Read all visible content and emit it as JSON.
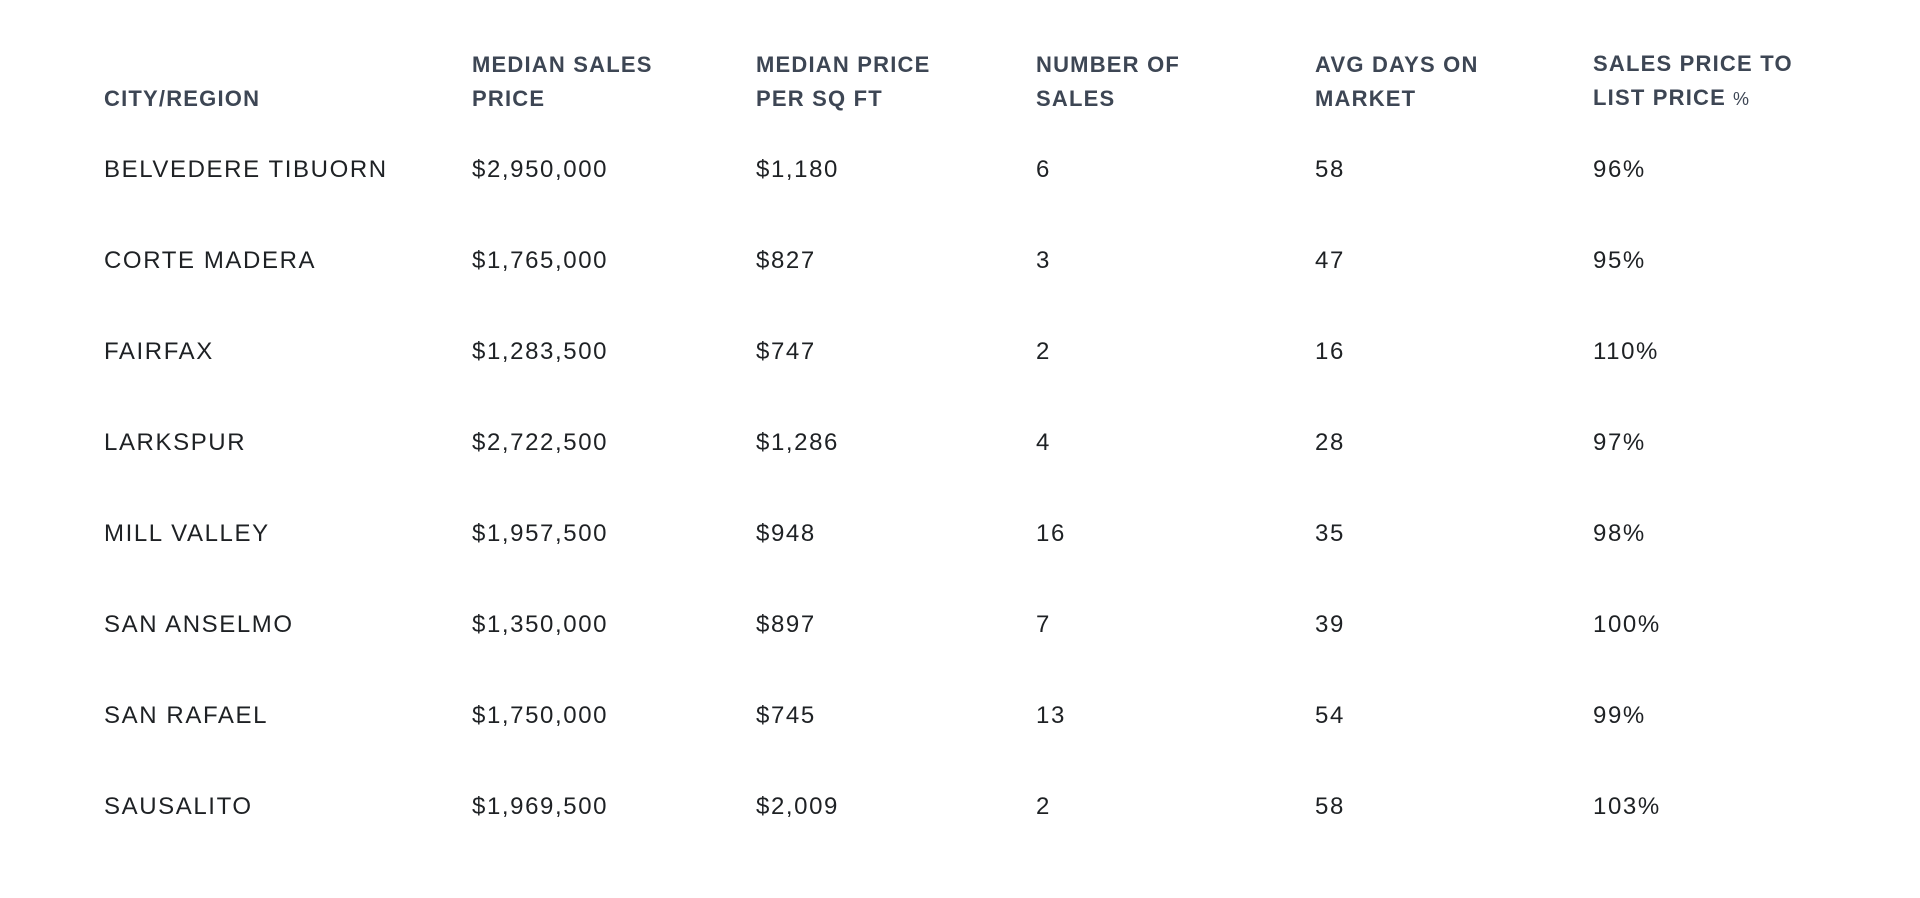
{
  "colors": {
    "background": "#ffffff",
    "header_text": "#3d4654",
    "body_text": "#1e2124"
  },
  "table": {
    "header": {
      "city": "CITY/REGION",
      "median_sales_price": "MEDIAN SALES\nPRICE",
      "median_price_per_sqft": "MEDIAN PRICE\nPER SQ FT",
      "number_of_sales": "NUMBER OF\nSALES",
      "avg_days_on_market": "AVG DAYS ON\nMARKET",
      "sales_price_to_list_price": "SALES PRICE TO\nLIST PRICE",
      "sales_price_to_list_price_suffix": "%"
    }
  },
  "chart_data": {
    "type": "table",
    "title": "",
    "columns": [
      "CITY/REGION",
      "MEDIAN SALES PRICE",
      "MEDIAN PRICE PER SQ FT",
      "NUMBER OF SALES",
      "AVG DAYS ON MARKET",
      "SALES PRICE TO LIST PRICE %"
    ],
    "rows": [
      [
        "BELVEDERE TIBUORN",
        "$2,950,000",
        "$1,180",
        "6",
        "58",
        "96%"
      ],
      [
        "CORTE MADERA",
        "$1,765,000",
        "$827",
        "3",
        "47",
        "95%"
      ],
      [
        "FAIRFAX",
        "$1,283,500",
        "$747",
        "2",
        "16",
        "110%"
      ],
      [
        "LARKSPUR",
        "$2,722,500",
        "$1,286",
        "4",
        "28",
        "97%"
      ],
      [
        "MILL VALLEY",
        "$1,957,500",
        "$948",
        "16",
        "35",
        "98%"
      ],
      [
        "SAN ANSELMO",
        "$1,350,000",
        "$897",
        "7",
        "39",
        "100%"
      ],
      [
        "SAN RAFAEL",
        "$1,750,000",
        "$745",
        "13",
        "54",
        "99%"
      ],
      [
        "SAUSALITO",
        "$1,969,500",
        "$2,009",
        "2",
        "58",
        "103%"
      ]
    ]
  }
}
